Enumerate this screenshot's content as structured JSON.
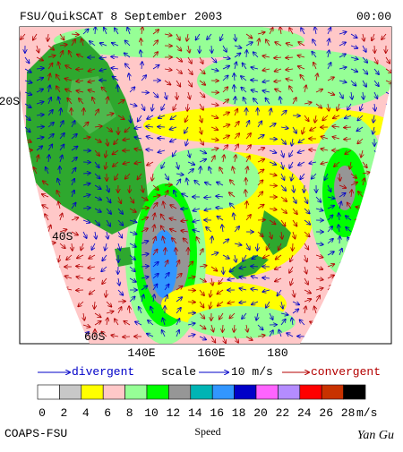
{
  "header": {
    "title": "FSU/QuikSCAT  8 September 2003",
    "time": "00:00"
  },
  "map": {
    "lat_labels": [
      "20S",
      "40S",
      "60S"
    ],
    "lon_labels": [
      "140E",
      "160E",
      "180"
    ]
  },
  "legend": {
    "divergent": "divergent",
    "scale": "scale",
    "scale_value": "10 m/s",
    "convergent": "convergent"
  },
  "colorbar": {
    "colors": [
      "#ffffff",
      "#c8c8c8",
      "#ffff00",
      "#ffc8c8",
      "#96ff96",
      "#00ff00",
      "#969696",
      "#00b4b4",
      "#3296ff",
      "#0000c8",
      "#ff64ff",
      "#b48cff",
      "#ff0000",
      "#c83200",
      "#000000"
    ],
    "labels": [
      "0",
      "2",
      "4",
      "6",
      "8",
      "10",
      "12",
      "14",
      "16",
      "18",
      "20",
      "22",
      "24",
      "26",
      "28"
    ],
    "unit": "m/s"
  },
  "footer": {
    "left": "COAPS-FSU",
    "center": "Speed",
    "right": "Yan Gu"
  }
}
